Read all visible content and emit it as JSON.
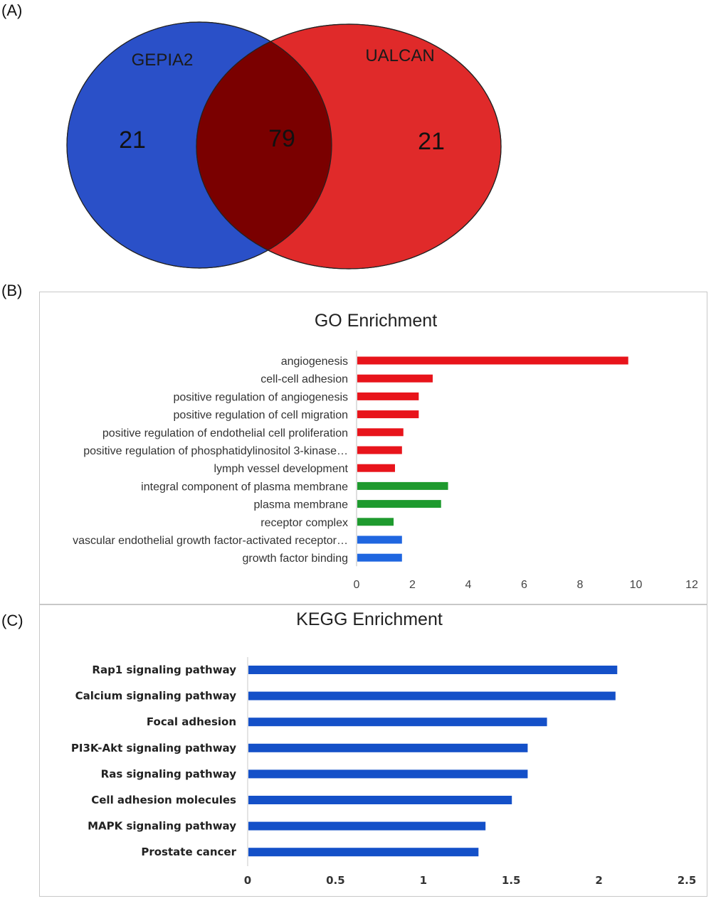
{
  "panels": {
    "a": "(A)",
    "b": "(B)",
    "c": "(C)"
  },
  "venn": {
    "left": {
      "name": "GEPIA2",
      "count": "21",
      "color": "#2a50c8"
    },
    "right": {
      "name": "UALCAN",
      "count": "21",
      "color": "#e02a2a"
    },
    "overlap": {
      "count": "79",
      "color": "#7a0000"
    }
  },
  "chart_data": [
    {
      "type": "bar",
      "orientation": "horizontal",
      "title": "GO Enrichment",
      "categories": [
        "angiogenesis",
        "cell-cell adhesion",
        "positive regulation of angiogenesis",
        "positive regulation of cell migration",
        "positive regulation of endothelial cell proliferation",
        "positive regulation of phosphatidylinositol 3-kinase…",
        "lymph vessel development",
        "integral component of plasma membrane",
        "plasma membrane",
        "receptor complex",
        "vascular endothelial growth factor-activated receptor…",
        "growth factor binding"
      ],
      "values": [
        9.7,
        2.7,
        2.2,
        2.2,
        1.65,
        1.6,
        1.35,
        3.25,
        3.0,
        1.3,
        1.6,
        1.6
      ],
      "bar_colors": [
        "#e8141b",
        "#e8141b",
        "#e8141b",
        "#e8141b",
        "#e8141b",
        "#e8141b",
        "#e8141b",
        "#1e9a2e",
        "#1e9a2e",
        "#1e9a2e",
        "#1f66e0",
        "#1f66e0"
      ],
      "xlim": [
        0,
        12
      ],
      "xticks": [
        0,
        2,
        4,
        6,
        8,
        10,
        12
      ],
      "xlabel": "",
      "ylabel": "",
      "grid": false
    },
    {
      "type": "bar",
      "orientation": "horizontal",
      "title": "KEGG Enrichment",
      "categories": [
        "Rap1 signaling pathway",
        "Calcium signaling pathway",
        "Focal adhesion",
        "PI3K-Akt signaling pathway",
        "Ras signaling pathway",
        "Cell adhesion molecules",
        "MAPK signaling pathway",
        "Prostate cancer"
      ],
      "values": [
        2.1,
        2.09,
        1.7,
        1.59,
        1.59,
        1.5,
        1.35,
        1.31
      ],
      "bar_color": "#1450c8",
      "xlim": [
        0,
        2.5
      ],
      "xticks": [
        "0",
        "0.5",
        "1",
        "1.5",
        "2",
        "2.5"
      ],
      "xlabel": "",
      "ylabel": "",
      "grid": false
    }
  ]
}
